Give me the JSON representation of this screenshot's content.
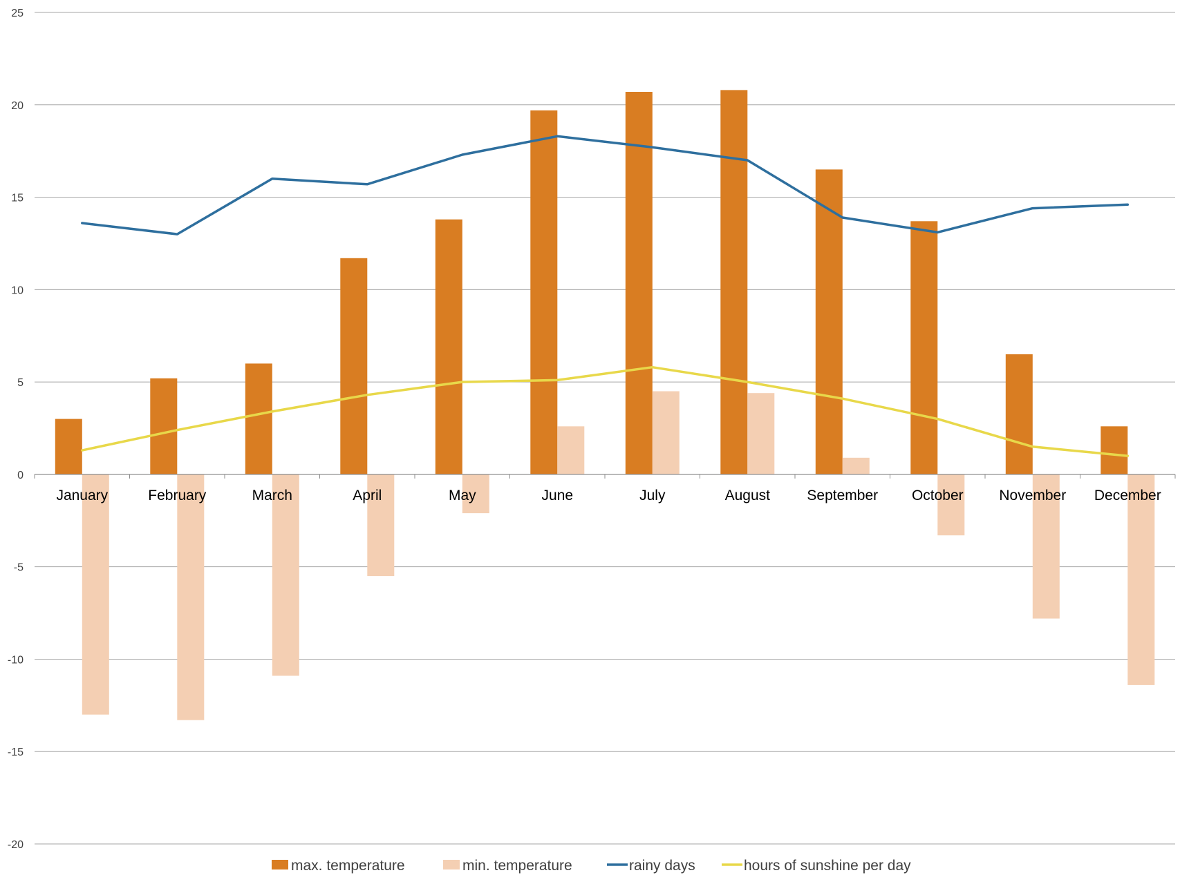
{
  "chart_data": {
    "type": "bar",
    "title": "",
    "xlabel": "",
    "ylabel": "",
    "categories": [
      "January",
      "February",
      "March",
      "April",
      "May",
      "June",
      "July",
      "August",
      "September",
      "October",
      "November",
      "December"
    ],
    "ylim": [
      -20,
      25
    ],
    "yticks": [
      25,
      20,
      15,
      10,
      5,
      0,
      -5,
      -10,
      -15,
      -20
    ],
    "grid": true,
    "legend_position": "bottom",
    "series": [
      {
        "name": "max.  temperature",
        "type": "bar",
        "color": "#d97d22",
        "values": [
          3.0,
          5.2,
          6.0,
          11.7,
          13.8,
          19.7,
          20.7,
          20.8,
          16.5,
          13.7,
          6.5,
          2.6
        ]
      },
      {
        "name": "min. temperature",
        "type": "bar",
        "color": "#f4cfb3",
        "values": [
          -13.0,
          -13.3,
          -10.9,
          -5.5,
          -2.1,
          2.6,
          4.5,
          4.4,
          0.9,
          -3.3,
          -7.8,
          -11.4
        ]
      },
      {
        "name": "rainy days",
        "type": "line",
        "color": "#2e6f9e",
        "values": [
          13.6,
          13.0,
          16.0,
          15.7,
          17.3,
          18.3,
          17.7,
          17.0,
          13.9,
          13.1,
          14.4,
          14.6
        ]
      },
      {
        "name": "hours of sunshine per day",
        "type": "line",
        "color": "#e8d84a",
        "values": [
          1.3,
          2.4,
          3.4,
          4.3,
          5.0,
          5.1,
          5.8,
          5.0,
          4.1,
          3.0,
          1.5,
          1.0
        ]
      }
    ]
  }
}
